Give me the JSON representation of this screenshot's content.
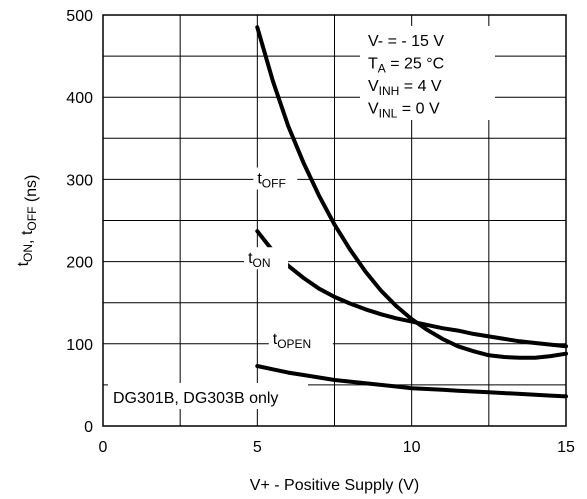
{
  "chart_data": {
    "type": "line",
    "xlabel": "V+ - Positive Supply (V)",
    "ylabel_main": "t",
    "ylabel_parts": [
      {
        "text": "t",
        "sub": "ON"
      },
      {
        "text": ",  t",
        "sub": "OFF"
      },
      {
        "text": "  (ns)",
        "sub": ""
      }
    ],
    "xlim": [
      0,
      15
    ],
    "ylim": [
      0,
      500
    ],
    "x_ticks": [
      0,
      5,
      10,
      15
    ],
    "y_ticks": [
      0,
      100,
      200,
      300,
      400,
      500
    ],
    "grid": true,
    "conditions": [
      {
        "main": "V-  = - 15 V",
        "sub": "",
        "rest": ""
      },
      {
        "main": "T",
        "sub": "A",
        "rest": " = 25 °C"
      },
      {
        "main": "V",
        "sub": "INH",
        "rest": " = 4 V"
      },
      {
        "main": "V",
        "sub": "INL",
        "rest": " = 0 V"
      }
    ],
    "series": [
      {
        "name": "tOFF",
        "label_main": "t",
        "label_sub": "OFF",
        "points": [
          [
            5,
            485
          ],
          [
            5.5,
            420
          ],
          [
            6,
            365
          ],
          [
            6.5,
            320
          ],
          [
            7,
            280
          ],
          [
            7.5,
            245
          ],
          [
            8,
            215
          ],
          [
            8.5,
            188
          ],
          [
            9,
            165
          ],
          [
            9.5,
            146
          ],
          [
            10,
            130
          ],
          [
            10.5,
            117
          ],
          [
            11,
            106
          ],
          [
            11.5,
            97
          ],
          [
            12,
            91
          ],
          [
            12.5,
            86
          ],
          [
            13,
            84
          ],
          [
            13.5,
            83
          ],
          [
            14,
            83
          ],
          [
            14.5,
            85
          ],
          [
            15,
            88
          ]
        ]
      },
      {
        "name": "tON",
        "label_main": "t",
        "label_sub": "ON",
        "points": [
          [
            5,
            237
          ],
          [
            5.5,
            213
          ],
          [
            6,
            195
          ],
          [
            6.5,
            180
          ],
          [
            7,
            167
          ],
          [
            7.5,
            157
          ],
          [
            8,
            149
          ],
          [
            8.5,
            142
          ],
          [
            9,
            136
          ],
          [
            9.5,
            131
          ],
          [
            10,
            127
          ],
          [
            10.5,
            123
          ],
          [
            11,
            119
          ],
          [
            11.5,
            116
          ],
          [
            12,
            112
          ],
          [
            12.5,
            109
          ],
          [
            13,
            106
          ],
          [
            13.5,
            103
          ],
          [
            14,
            101
          ],
          [
            14.5,
            99
          ],
          [
            15,
            97
          ]
        ]
      },
      {
        "name": "tOPEN",
        "label_main": "t",
        "label_sub": "OPEN",
        "points": [
          [
            5,
            73
          ],
          [
            5.5,
            69
          ],
          [
            6,
            65
          ],
          [
            6.5,
            62
          ],
          [
            7,
            59
          ],
          [
            7.5,
            56
          ],
          [
            8,
            54
          ],
          [
            8.5,
            52
          ],
          [
            9,
            50
          ],
          [
            9.5,
            48
          ],
          [
            10,
            46
          ],
          [
            10.5,
            45
          ],
          [
            11,
            44
          ],
          [
            11.5,
            43
          ],
          [
            12,
            42
          ],
          [
            12.5,
            41
          ],
          [
            13,
            40
          ],
          [
            13.5,
            39
          ],
          [
            14,
            38
          ],
          [
            14.5,
            37
          ],
          [
            15,
            36
          ]
        ]
      }
    ],
    "note": "DG301B, DG303B only"
  }
}
